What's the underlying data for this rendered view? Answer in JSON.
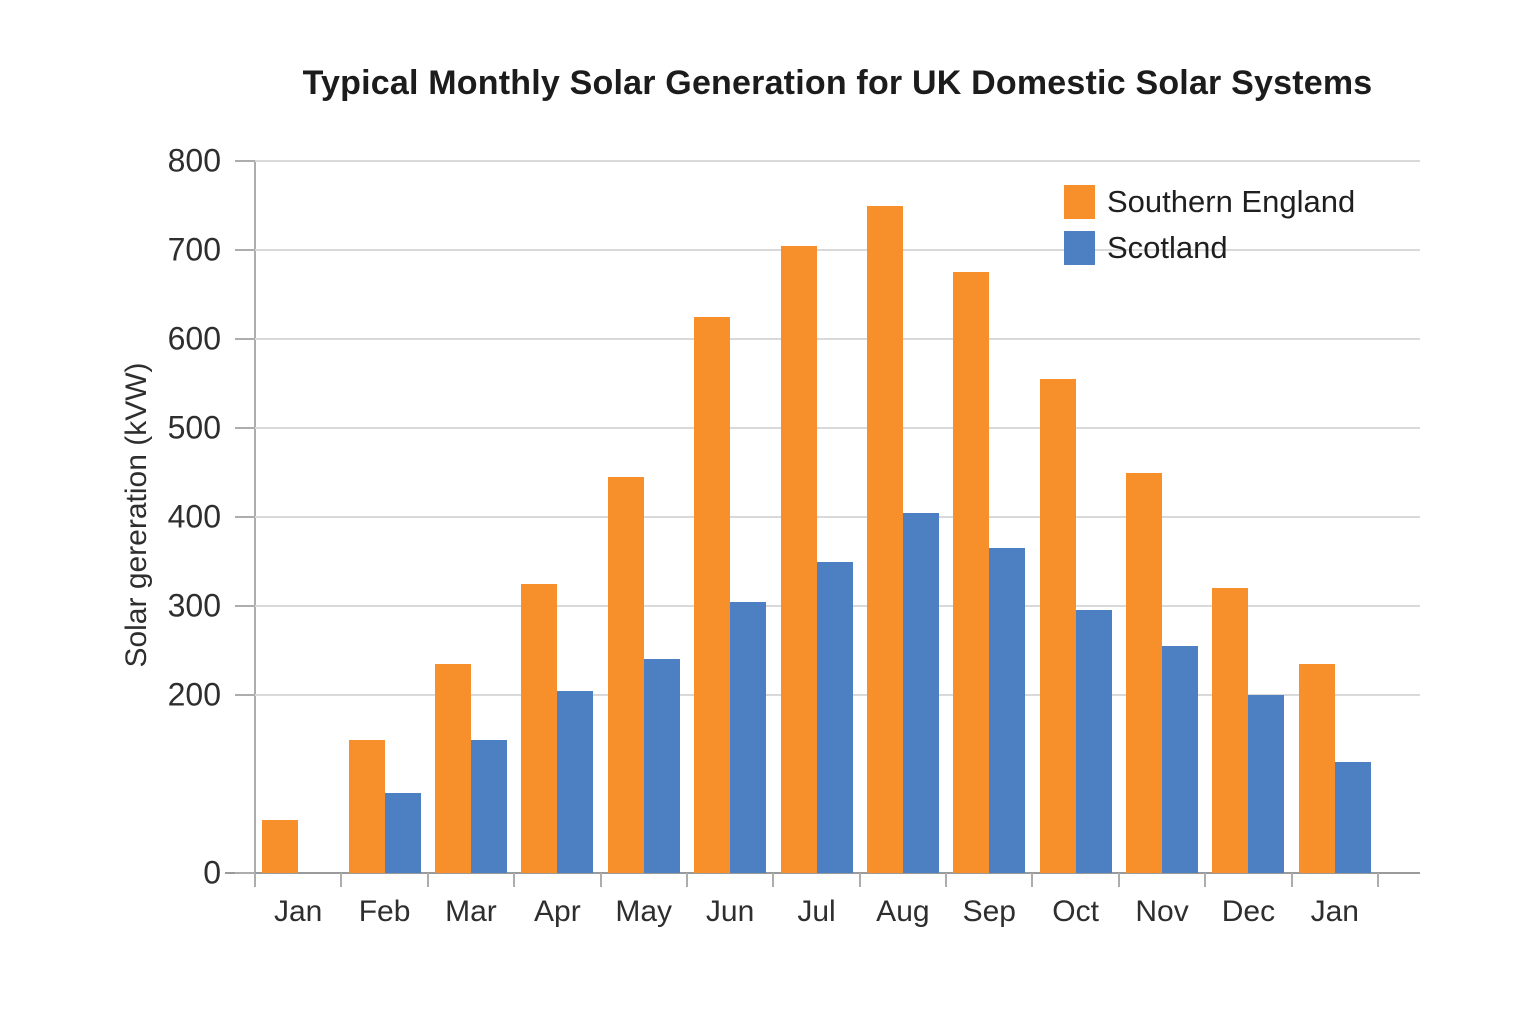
{
  "chart_data": {
    "type": "bar",
    "title": "Typical Monthly Solar Generation for UK Domestic Solar Systems",
    "xlabel": "",
    "ylabel": "Solar gereration (kVW)",
    "categories": [
      "Jan",
      "Feb",
      "Mar",
      "Apr",
      "May",
      "Jun",
      "Jul",
      "Aug",
      "Sep",
      "Oct",
      "Nov",
      "Dec",
      "Jan"
    ],
    "series": [
      {
        "name": "Southern England",
        "color": "#F78F2B",
        "values": [
          60,
          150,
          235,
          325,
          445,
          625,
          705,
          750,
          675,
          555,
          450,
          320,
          235
        ]
      },
      {
        "name": "Scotland",
        "color": "#4C80C2",
        "values": [
          null,
          90,
          150,
          205,
          240,
          305,
          350,
          405,
          365,
          295,
          255,
          200,
          125
        ]
      }
    ],
    "ylim": [
      0,
      800
    ],
    "ytick_values": [
      0,
      200,
      300,
      400,
      500,
      600,
      700,
      800
    ],
    "gridline_values": [
      200,
      300,
      400,
      500,
      600,
      700,
      800
    ],
    "grid": true,
    "legend_position": "top-right"
  },
  "styles": {
    "background": "#FFFFFF",
    "grid_color": "#D9D9D9",
    "axis_color": "#ADADAD",
    "baseline_color": "#9A9A9A",
    "text_color": "#2E2E2E",
    "title_color": "#1C1C1C"
  }
}
